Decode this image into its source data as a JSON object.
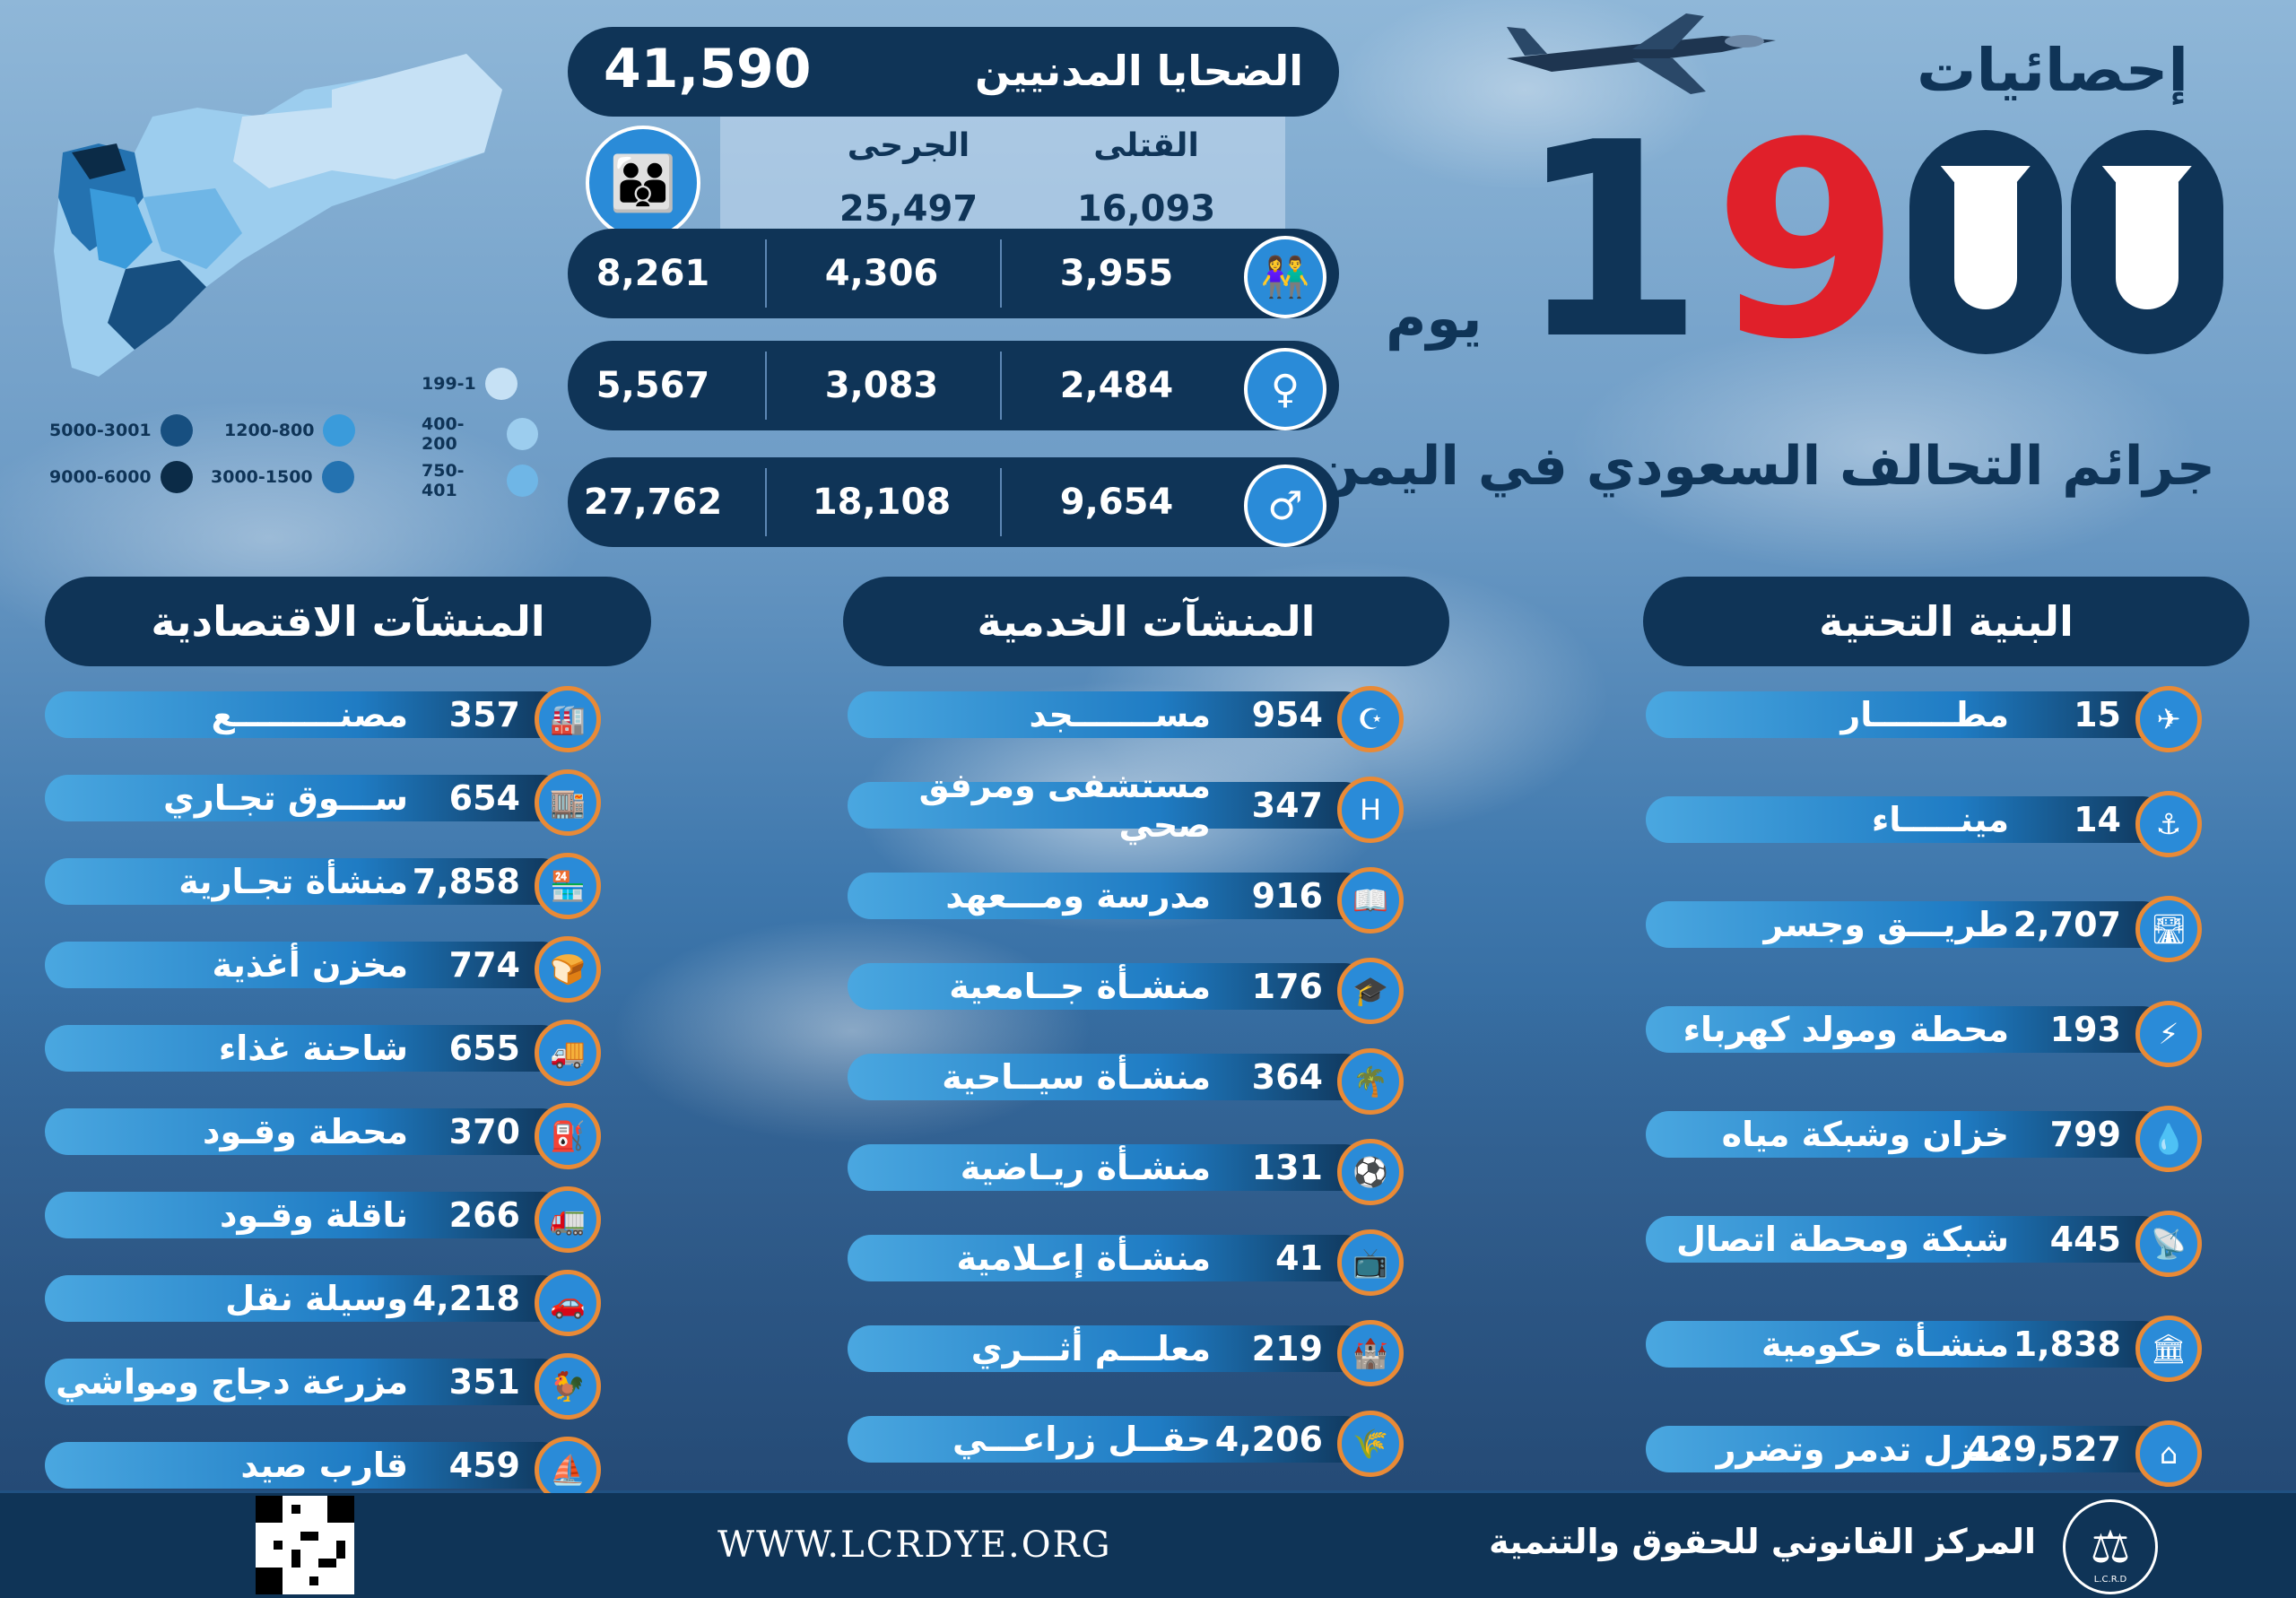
{
  "header": {
    "title": "إحصائيات",
    "days_number": "1900",
    "days_word": "يوم",
    "subtitle": "جرائم التحالف السعودي في اليمن"
  },
  "map_legend": [
    {
      "label": "199-1",
      "color": "#c6e1f5"
    },
    {
      "label": "400-200",
      "color": "#9ccdee"
    },
    {
      "label": "750-401",
      "color": "#6fb6e6"
    },
    {
      "label": "1200-800",
      "color": "#3a9bdb"
    },
    {
      "label": "3000-1500",
      "color": "#2472b0"
    },
    {
      "label": "5000-3001",
      "color": "#174f80"
    },
    {
      "label": "9000-6000",
      "color": "#0b2b47"
    }
  ],
  "casualties": {
    "label": "الضحايا المدنيين",
    "total": "41,590",
    "killed_label": "القتلى",
    "wounded_label": "الجرحى",
    "killed_total": "16,093",
    "wounded_total": "25,497",
    "rows": [
      {
        "icon": "children-icon",
        "total": "8,261",
        "wounded": "4,306",
        "killed": "3,955"
      },
      {
        "icon": "woman-icon",
        "total": "5,567",
        "wounded": "3,083",
        "killed": "2,484"
      },
      {
        "icon": "man-icon",
        "total": "27,762",
        "wounded": "18,108",
        "killed": "9,654"
      }
    ]
  },
  "columns": {
    "economic": {
      "title": "المنشآت الاقتصادية",
      "items": [
        {
          "label": "مصنـــــــــع",
          "value": "357",
          "icon": "factory-icon"
        },
        {
          "label": "ســـوق تجـاري",
          "value": "654",
          "icon": "market-icon"
        },
        {
          "label": "منشأة تجـارية",
          "value": "7,858",
          "icon": "shop-icon"
        },
        {
          "label": "مخزن أغذية",
          "value": "774",
          "icon": "food-store-icon"
        },
        {
          "label": "شاحنة غذاء",
          "value": "655",
          "icon": "food-truck-icon"
        },
        {
          "label": "محطة وقـود",
          "value": "370",
          "icon": "fuel-station-icon"
        },
        {
          "label": "ناقلة وقـود",
          "value": "266",
          "icon": "fuel-tanker-icon"
        },
        {
          "label": "وسيلة نقل",
          "value": "4,218",
          "icon": "car-icon"
        },
        {
          "label": "مزرعة دجاج ومواشي",
          "value": "351",
          "icon": "chicken-icon"
        },
        {
          "label": "قارب صيد",
          "value": "459",
          "icon": "boat-icon"
        }
      ]
    },
    "service": {
      "title": "المنشآت الخدمية",
      "items": [
        {
          "label": "مســـــــجد",
          "value": "954",
          "icon": "mosque-icon"
        },
        {
          "label": "مستشفى ومرفق صحي",
          "value": "347",
          "icon": "hospital-icon"
        },
        {
          "label": "مدرسة ومـــعهد",
          "value": "916",
          "icon": "book-icon"
        },
        {
          "label": "منشـأة جــامعية",
          "value": "176",
          "icon": "graduation-cap-icon"
        },
        {
          "label": "منشـأة سيــاحية",
          "value": "364",
          "icon": "palm-icon"
        },
        {
          "label": "منشـأة ريـاضية",
          "value": "131",
          "icon": "stadium-icon"
        },
        {
          "label": "منشـأة إعـلامية",
          "value": "41",
          "icon": "tv-icon"
        },
        {
          "label": "معلـــم أثـــري",
          "value": "219",
          "icon": "tower-icon"
        },
        {
          "label": "حقــل زراعـــي",
          "value": "4,206",
          "icon": "wheat-icon"
        }
      ]
    },
    "infrastructure": {
      "title": "البنية التحتية",
      "items": [
        {
          "label": "مطـــــــار",
          "value": "15",
          "icon": "airplane-icon"
        },
        {
          "label": "مينـــــاء",
          "value": "14",
          "icon": "anchor-icon"
        },
        {
          "label": "طريـــق وجسر",
          "value": "2,707",
          "icon": "road-icon"
        },
        {
          "label": "محطة ومولد كهرباء",
          "value": "193",
          "icon": "power-tower-icon"
        },
        {
          "label": "خزان وشبكة مياه",
          "value": "799",
          "icon": "water-icon"
        },
        {
          "label": "شبكة ومحطة اتصال",
          "value": "445",
          "icon": "satellite-dish-icon"
        },
        {
          "label": "منشـأة حكومية",
          "value": "1,838",
          "icon": "government-building-icon"
        },
        {
          "label": "منزل تدمر وتضرر",
          "value": "429,527",
          "icon": "house-icon"
        }
      ]
    }
  },
  "footer": {
    "website": "WWW.LCRDYE.ORG",
    "organization": "المركز القانوني للحقوق والتنمية",
    "logo_text": "L.C.R.D"
  },
  "colors": {
    "navy": "#0f3457",
    "accent_red": "#e0202a",
    "icon_blue": "#2a8bd8",
    "icon_ring": "#e98a36"
  }
}
